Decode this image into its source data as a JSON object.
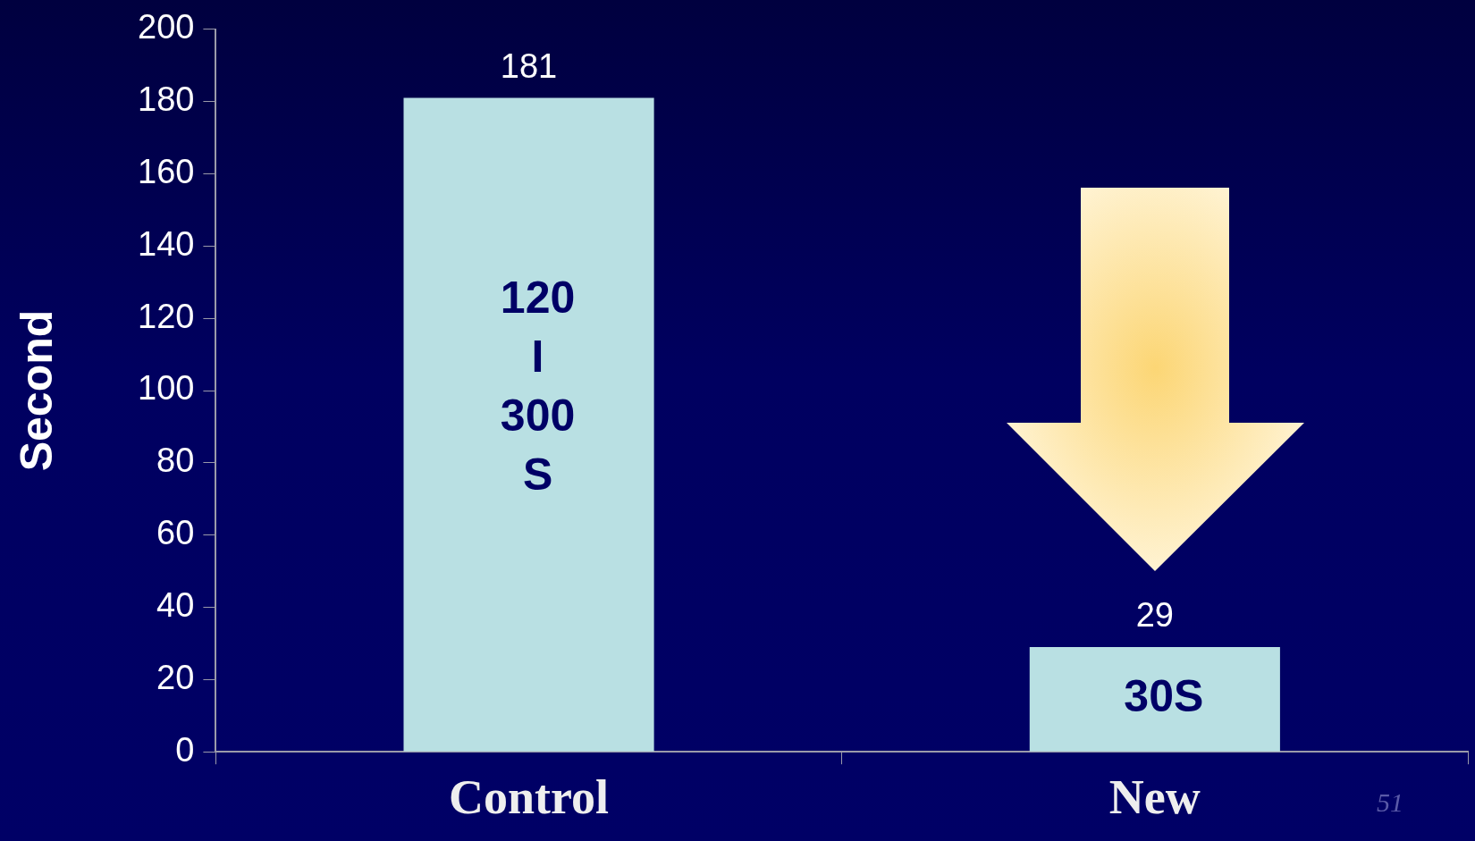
{
  "chart_data": {
    "type": "bar",
    "ylabel": "Second",
    "categories": [
      "Control",
      "New"
    ],
    "values": [
      181,
      29
    ],
    "color": "#b9e0e3",
    "ylim": [
      0,
      200
    ],
    "yticks": [
      0,
      20,
      40,
      60,
      80,
      100,
      120,
      140,
      160,
      180,
      200
    ],
    "grid": false,
    "data_labels": true,
    "annotations": [
      "120\nI\n300\nS",
      "30S",
      "51"
    ]
  }
}
